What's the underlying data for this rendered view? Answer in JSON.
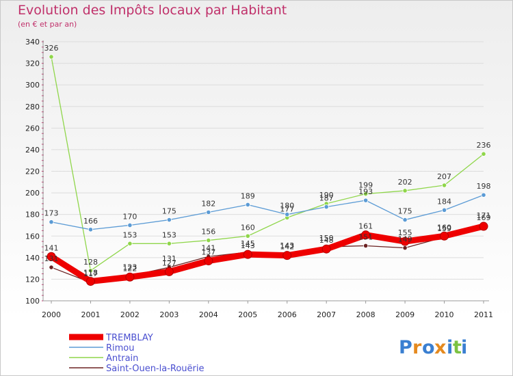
{
  "title": "Evolution des Impôts locaux par Habitant",
  "subtitle": "(en € et par an)",
  "logo": "Proxiti",
  "chart_data": {
    "type": "line",
    "x": [
      "2000",
      "2001",
      "2002",
      "2003",
      "2004",
      "2005",
      "2006",
      "2007",
      "2008",
      "2009",
      "2010",
      "2011"
    ],
    "ylim": [
      100,
      340
    ],
    "yticks": [
      100,
      120,
      140,
      160,
      180,
      200,
      220,
      240,
      260,
      280,
      300,
      320,
      340
    ],
    "grid": "horizontal",
    "legend_position": "bottom-left",
    "series": [
      {
        "name": "TREMBLAY",
        "color": "#ee0000",
        "values": [
          141,
          118,
          122,
          127,
          137,
          143,
          142,
          148,
          161,
          155,
          160,
          169
        ]
      },
      {
        "name": "Rimou",
        "color": "#5b9bd5",
        "values": [
          173,
          166,
          170,
          175,
          182,
          189,
          180,
          187,
          193,
          175,
          184,
          198
        ]
      },
      {
        "name": "Antrain",
        "color": "#8fd64a",
        "values": [
          326,
          128,
          153,
          153,
          156,
          160,
          177,
          190,
          199,
          202,
          207,
          236
        ]
      },
      {
        "name": "Saint-Ouen-la-Rouërie",
        "color": "#6b2222",
        "values": [
          131,
          117,
          123,
          131,
          141,
          145,
          143,
          150,
          151,
          149,
          159,
          171
        ]
      }
    ]
  }
}
